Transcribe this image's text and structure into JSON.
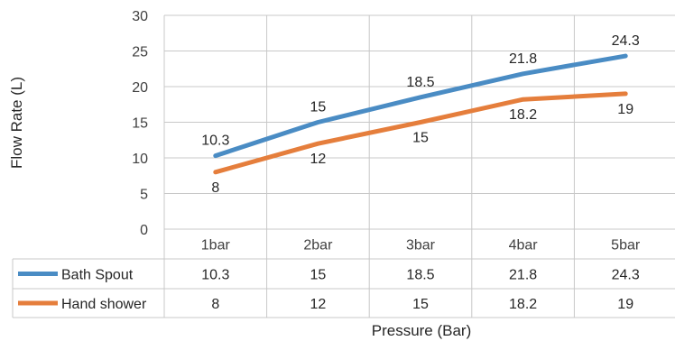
{
  "chart_data": {
    "type": "line",
    "categories": [
      "1bar",
      "2bar",
      "3bar",
      "4bar",
      "5bar"
    ],
    "series": [
      {
        "name": "Bath Spout",
        "color": "#4a8cc4",
        "values": [
          10.3,
          15,
          18.5,
          21.8,
          24.3
        ]
      },
      {
        "name": "Hand shower",
        "color": "#e57e3c",
        "values": [
          8,
          12,
          15,
          18.2,
          19
        ]
      }
    ],
    "ylim": [
      0,
      30
    ],
    "yticks": [
      0,
      5,
      10,
      15,
      20,
      25,
      30
    ],
    "xlabel": "Pressure (Bar)",
    "ylabel": "Flow Rate (L)",
    "grid": true,
    "data_table": true,
    "title": ""
  }
}
